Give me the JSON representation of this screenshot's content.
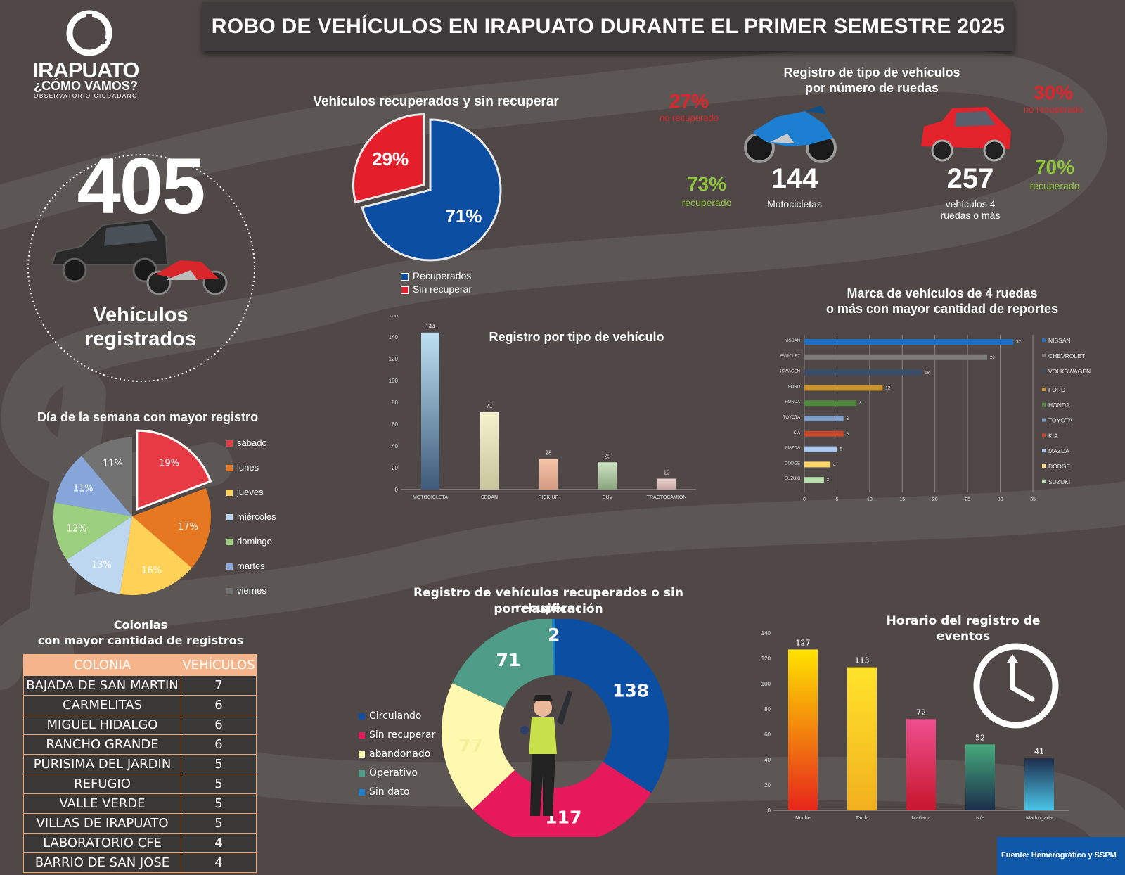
{
  "title": "ROBO DE VEHÍCULOS EN IRAPUATO DURANTE EL PRIMER SEMESTRE  2025",
  "logo": {
    "name": "IRAPUATO",
    "tagline": "¿CÓMO VAMOS?",
    "sub": "OBSERVATORIO CIUDADANO"
  },
  "total": {
    "value": "405",
    "label_line1": "Vehículos",
    "label_line2": "registrados"
  },
  "recuperados_pie": {
    "title": "Vehículos recuperados y sin recuperar",
    "legend_recuperados": "Recuperados",
    "legend_sin": "Sin recuperar",
    "label_recuperados": "71%",
    "label_sin": "29%",
    "colors": {
      "recuperados": "#0c4ea1",
      "sin": "#e51e2b"
    }
  },
  "ruedas": {
    "title_line1": "Registro de tipo de vehículos",
    "title_line2": "por número de ruedas",
    "moto": {
      "count": "144",
      "label": "Motocicletas",
      "no_pct": "27%",
      "no_label": "no recuperado",
      "rec_pct": "73%",
      "rec_label": "recuperado"
    },
    "auto": {
      "count": "257",
      "label_line1": "vehículos 4",
      "label_line2": "ruedas o más",
      "no_pct": "30%",
      "no_label": "no recuperado",
      "rec_pct": "70%",
      "rec_label": "recuperado"
    }
  },
  "tipo_chart": {
    "title": "Registro por tipo de vehículo"
  },
  "marca_chart": {
    "title_line1": "Marca de vehículos de 4 ruedas",
    "title_line2": "o más con mayor cantidad de reportes"
  },
  "dia_chart": {
    "title": "Día de la semana con mayor registro"
  },
  "colonias": {
    "title_line1": "Colonias",
    "title_line2": "con mayor cantidad de registros",
    "headers": [
      "COLONIA",
      "VEHÍCULOS"
    ],
    "rows": [
      [
        "BAJADA DE SAN MARTIN",
        "7"
      ],
      [
        "CARMELITAS",
        "6"
      ],
      [
        "MIGUEL HIDALGO",
        "6"
      ],
      [
        "RANCHO GRANDE",
        "6"
      ],
      [
        "PURISIMA DEL JARDIN",
        "5"
      ],
      [
        "REFUGIO",
        "5"
      ],
      [
        "VALLE VERDE",
        "5"
      ],
      [
        "VILLAS DE IRAPUATO",
        "5"
      ],
      [
        "LABORATORIO CFE",
        "4"
      ],
      [
        "BARRIO DE SAN JOSE",
        "4"
      ]
    ]
  },
  "clasif_chart": {
    "title_line1": "Registro de vehículos recuperados o sin recuperar",
    "title_line2": "por clasificación"
  },
  "horario_chart": {
    "title": "Horario del registro de eventos"
  },
  "source": "Fuente: Hemerográfico y SSPM",
  "chart_data": [
    {
      "id": "recuperados",
      "type": "pie",
      "title": "Vehículos recuperados y sin recuperar",
      "categories": [
        "Recuperados",
        "Sin recuperar"
      ],
      "values": [
        71,
        29
      ],
      "unit": "%",
      "legend": "bottom"
    },
    {
      "id": "tipo",
      "type": "bar",
      "title": "Registro por tipo de vehículo",
      "categories": [
        "MOTOCICLETA",
        "SEDAN",
        "PICK-UP",
        "SUV",
        "TRACTOCAMION"
      ],
      "values": [
        144,
        71,
        28,
        25,
        10
      ],
      "ylim": [
        0,
        160
      ],
      "yticks": [
        0,
        20,
        40,
        60,
        80,
        100,
        120,
        140,
        160
      ],
      "colors": [
        [
          "#bfe1f3",
          "#3d5a7a"
        ],
        [
          "#f6f2cf",
          "#c8c49b"
        ],
        [
          "#f6c4a8",
          "#d39a80"
        ],
        [
          "#cfe6c3",
          "#88a37c"
        ],
        [
          "#ead2cf",
          "#c6a5a1"
        ]
      ]
    },
    {
      "id": "marca",
      "type": "bar",
      "orientation": "horizontal",
      "title": "Marca de vehículos de 4 ruedas o más con mayor cantidad de reportes",
      "categories": [
        "NISSAN",
        "CHEVROLET",
        "VOLKSWAGEN",
        "FORD",
        "HONDA",
        "TOYOTA",
        "KIA",
        "MAZDA",
        "DODGE",
        "SUZUKI"
      ],
      "values": [
        32,
        28,
        18,
        12,
        8,
        6,
        6,
        5,
        4,
        3
      ],
      "xlim": [
        0,
        35
      ],
      "xticks": [
        0,
        5,
        10,
        15,
        20,
        25,
        30,
        35
      ],
      "colors": [
        "#1f6fc4",
        "#7d7c7a",
        "#3a4e6c",
        "#c9942e",
        "#4d8a3a",
        "#7f9cc7",
        "#c9462b",
        "#aac7ee",
        "#ffd66a",
        "#b7dfae"
      ],
      "legend": "right"
    },
    {
      "id": "dia",
      "type": "pie",
      "title": "Día de la semana con mayor registro",
      "categories": [
        "sábado",
        "lunes",
        "jueves",
        "miércoles",
        "domingo",
        "martes",
        "viernes"
      ],
      "values": [
        19,
        17,
        16,
        13,
        12,
        11,
        11
      ],
      "unit": "%",
      "colors": [
        "#e63a45",
        "#e67822",
        "#ffd257",
        "#bcd7ef",
        "#9ccf7e",
        "#87a6da",
        "#737272"
      ],
      "legend": "right"
    },
    {
      "id": "clasif",
      "type": "pie",
      "variant": "donut",
      "title": "Registro de vehículos recuperados o sin recuperar por clasificación",
      "categories": [
        "Circulando",
        "Sin recuperar",
        "abandonado",
        "Operativo",
        "Sin dato"
      ],
      "values": [
        138,
        117,
        77,
        71,
        2
      ],
      "colors": [
        "#0c4ea1",
        "#e5195b",
        "#fff9b0",
        "#4f9c88",
        "#1f7fc8"
      ],
      "legend": "left"
    },
    {
      "id": "horario",
      "type": "bar",
      "title": "Horario del registro de eventos",
      "categories": [
        "Noche",
        "Tarde",
        "Mañana",
        "N/e",
        "Madrugada"
      ],
      "values": [
        127,
        113,
        72,
        52,
        41
      ],
      "ylim": [
        0,
        140
      ],
      "yticks": [
        0,
        20,
        40,
        60,
        80,
        100,
        120,
        140
      ],
      "colors": [
        [
          "#ffe300",
          "#e6261b"
        ],
        [
          "#ffe32a",
          "#f2b01f"
        ],
        [
          "#ef4f8f",
          "#c7162d"
        ],
        [
          "#46a97c",
          "#1c2e4b"
        ],
        [
          "#1e2e4d",
          "#49c5e8"
        ]
      ]
    }
  ]
}
